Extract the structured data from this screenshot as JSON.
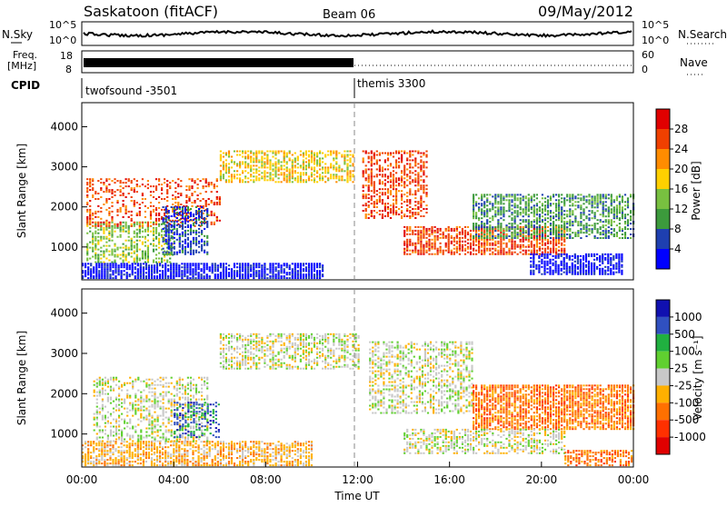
{
  "header": {
    "station": "Saskatoon (fitACF)",
    "beam": "Beam 06",
    "date": "09/May/2012"
  },
  "noise_panel": {
    "left_label": "N.Sky",
    "right_label": "N.Search",
    "left_ticks": [
      "10^5",
      "10^0"
    ],
    "right_ticks": [
      "10^5",
      "10^0"
    ]
  },
  "freq_panel": {
    "left_label_top": "Freq.",
    "left_label_bottom": "[MHz]",
    "left_ticks": [
      "18",
      "8"
    ],
    "right_label": "Nave",
    "right_ticks": [
      "60",
      "0"
    ]
  },
  "cpid_panel": {
    "label": "CPID",
    "segments": [
      {
        "name": "twofsound -3501",
        "start_hour": 0,
        "end_hour": 12
      },
      {
        "name": "themis 3300",
        "start_hour": 12,
        "end_hour": 24
      }
    ]
  },
  "x_axis": {
    "label": "Time UT",
    "ticks": [
      "00:00",
      "04:00",
      "08:00",
      "12:00",
      "16:00",
      "20:00",
      "00:00"
    ],
    "range_hours": [
      0,
      24
    ]
  },
  "chart_data": [
    {
      "type": "heatmap",
      "title": "Power",
      "ylabel": "Slant Range [km]",
      "ylim": [
        180,
        4600
      ],
      "yticks": [
        "4000",
        "3000",
        "2000",
        "1000"
      ],
      "ytick_values": [
        4000,
        3000,
        2000,
        1000
      ],
      "colorbar": {
        "label": "Power [dB]",
        "ticks": [
          "28",
          "24",
          "20",
          "16",
          "12",
          "8",
          "4"
        ],
        "colors": [
          "#e00000",
          "#f04000",
          "#ff8c00",
          "#ffd000",
          "#78c040",
          "#3c9a3c",
          "#1e3fb0",
          "#0000ff"
        ]
      },
      "bands": [
        {
          "start": 0.0,
          "end": 10.5,
          "r0": 200,
          "r1": 600,
          "level": 7,
          "density": 0.85
        },
        {
          "start": 0.2,
          "end": 4.0,
          "r0": 600,
          "r1": 1600,
          "level": 4,
          "density": 0.55
        },
        {
          "start": 0.2,
          "end": 6.0,
          "r0": 1500,
          "r1": 2700,
          "level": 1,
          "density": 0.35
        },
        {
          "start": 3.5,
          "end": 5.5,
          "r0": 800,
          "r1": 2000,
          "level": 6,
          "density": 0.6
        },
        {
          "start": 6.0,
          "end": 11.8,
          "r0": 2600,
          "r1": 3400,
          "level": 3,
          "density": 0.6
        },
        {
          "start": 12.2,
          "end": 15.0,
          "r0": 1700,
          "r1": 3400,
          "level": 1,
          "density": 0.55
        },
        {
          "start": 14.0,
          "end": 21.0,
          "r0": 800,
          "r1": 1500,
          "level": 1,
          "density": 0.7
        },
        {
          "start": 17.0,
          "end": 24.0,
          "r0": 1200,
          "r1": 2300,
          "level": 5,
          "density": 0.6
        },
        {
          "start": 19.5,
          "end": 23.5,
          "r0": 300,
          "r1": 800,
          "level": 7,
          "density": 0.7
        }
      ]
    },
    {
      "type": "heatmap",
      "title": "Velocity",
      "ylabel": "Slant Range [km]",
      "ylim": [
        180,
        4600
      ],
      "yticks": [
        "4000",
        "3000",
        "2000",
        "1000"
      ],
      "ytick_values": [
        4000,
        3000,
        2000,
        1000
      ],
      "colorbar": {
        "label": "Velocity [m s⁻¹]",
        "ticks": [
          "1000",
          "500",
          "100",
          "25",
          "-25",
          "-100",
          "-500",
          "-1000"
        ],
        "colors": [
          "#1010b0",
          "#3050c0",
          "#20b040",
          "#60d030",
          "#c8c8c8",
          "#ffb000",
          "#ff7000",
          "#ff3000",
          "#e00000"
        ]
      },
      "bands": [
        {
          "start": 0.0,
          "end": 10.0,
          "r0": 200,
          "r1": 800,
          "level": 5,
          "density": 0.7
        },
        {
          "start": 0.5,
          "end": 5.5,
          "r0": 800,
          "r1": 2400,
          "level": 4,
          "density": 0.45
        },
        {
          "start": 4.0,
          "end": 6.0,
          "r0": 900,
          "r1": 1800,
          "level": 1,
          "density": 0.45
        },
        {
          "start": 6.0,
          "end": 12.0,
          "r0": 2600,
          "r1": 3500,
          "level": 4,
          "density": 0.55
        },
        {
          "start": 12.5,
          "end": 17.0,
          "r0": 1500,
          "r1": 3300,
          "level": 4,
          "density": 0.5
        },
        {
          "start": 17.0,
          "end": 24.0,
          "r0": 1100,
          "r1": 2200,
          "level": 6,
          "density": 0.75
        },
        {
          "start": 14.0,
          "end": 21.0,
          "r0": 500,
          "r1": 1100,
          "level": 4,
          "density": 0.55
        },
        {
          "start": 21.0,
          "end": 24.0,
          "r0": 200,
          "r1": 600,
          "level": 6,
          "density": 0.6
        }
      ]
    }
  ]
}
